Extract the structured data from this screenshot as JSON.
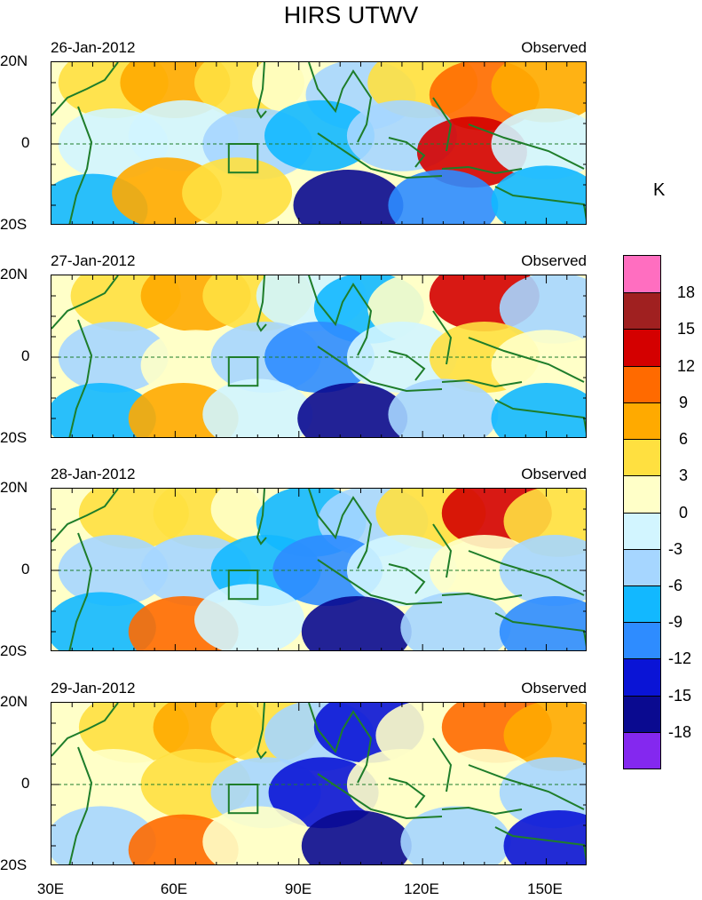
{
  "title": "HIRS UTWV",
  "unit": "K",
  "colorbar": {
    "levels": [
      "18",
      "15",
      "12",
      "9",
      "6",
      "3",
      "0",
      "-3",
      "-6",
      "-9",
      "-12",
      "-15",
      "-18"
    ],
    "colors": [
      "#ff6ec0",
      "#a02020",
      "#d40000",
      "#ff6a00",
      "#ffaa00",
      "#ffe040",
      "#ffffc8",
      "#d2f5ff",
      "#a6d6ff",
      "#12b8ff",
      "#2e8cff",
      "#0a14d6",
      "#0a0a90",
      "#8428ef"
    ]
  },
  "chart_data": {
    "type": "heatmap",
    "title": "HIRS UTWV",
    "colorbar_label": "K",
    "x_axis": {
      "ticks": [
        "30E",
        "60E",
        "90E",
        "120E",
        "150E"
      ],
      "range": [
        30,
        160
      ]
    },
    "y_axis": {
      "ticks": [
        "20N",
        "0",
        "20S"
      ],
      "range": [
        -20,
        20
      ]
    },
    "panels": [
      {
        "date": "26-Jan-2012",
        "label": "Observed",
        "y_ticks": [
          "20N",
          "0",
          "20S"
        ],
        "regions": [
          {
            "lon": 35,
            "lat": 12,
            "value": 0
          },
          {
            "lon": 45,
            "lat": 15,
            "value": 4
          },
          {
            "lon": 60,
            "lat": 15,
            "value": 6
          },
          {
            "lon": 78,
            "lat": 15,
            "value": 5
          },
          {
            "lon": 92,
            "lat": 15,
            "value": 2
          },
          {
            "lon": 105,
            "lat": 12,
            "value": -6
          },
          {
            "lon": 120,
            "lat": 15,
            "value": 3
          },
          {
            "lon": 135,
            "lat": 12,
            "value": 11
          },
          {
            "lon": 150,
            "lat": 14,
            "value": 8
          },
          {
            "lon": 45,
            "lat": 0,
            "value": -3
          },
          {
            "lon": 62,
            "lat": 2,
            "value": -1
          },
          {
            "lon": 80,
            "lat": 0,
            "value": -5
          },
          {
            "lon": 95,
            "lat": 2,
            "value": -8
          },
          {
            "lon": 115,
            "lat": 2,
            "value": -4
          },
          {
            "lon": 132,
            "lat": -2,
            "value": 13
          },
          {
            "lon": 150,
            "lat": 0,
            "value": -2
          },
          {
            "lon": 40,
            "lat": -16,
            "value": -9
          },
          {
            "lon": 58,
            "lat": -12,
            "value": 7
          },
          {
            "lon": 75,
            "lat": -12,
            "value": 5
          },
          {
            "lon": 102,
            "lat": -15,
            "value": -17
          },
          {
            "lon": 125,
            "lat": -15,
            "value": -10
          },
          {
            "lon": 150,
            "lat": -14,
            "value": -7
          }
        ]
      },
      {
        "date": "27-Jan-2012",
        "label": "Observed",
        "y_ticks": [
          "20N",
          "0",
          "20S"
        ],
        "regions": [
          {
            "lon": 35,
            "lat": 12,
            "value": 2
          },
          {
            "lon": 48,
            "lat": 15,
            "value": 5
          },
          {
            "lon": 65,
            "lat": 15,
            "value": 7
          },
          {
            "lon": 80,
            "lat": 15,
            "value": 4
          },
          {
            "lon": 93,
            "lat": 15,
            "value": -2
          },
          {
            "lon": 107,
            "lat": 12,
            "value": -8
          },
          {
            "lon": 120,
            "lat": 12,
            "value": 0
          },
          {
            "lon": 135,
            "lat": 15,
            "value": 13
          },
          {
            "lon": 152,
            "lat": 12,
            "value": -4
          },
          {
            "lon": 45,
            "lat": 0,
            "value": -5
          },
          {
            "lon": 65,
            "lat": -2,
            "value": 0
          },
          {
            "lon": 82,
            "lat": 0,
            "value": -6
          },
          {
            "lon": 95,
            "lat": 0,
            "value": -11
          },
          {
            "lon": 115,
            "lat": 0,
            "value": -3
          },
          {
            "lon": 135,
            "lat": 0,
            "value": 4
          },
          {
            "lon": 150,
            "lat": -2,
            "value": 1
          },
          {
            "lon": 42,
            "lat": -15,
            "value": -7
          },
          {
            "lon": 62,
            "lat": -15,
            "value": 8
          },
          {
            "lon": 80,
            "lat": -14,
            "value": -1
          },
          {
            "lon": 103,
            "lat": -15,
            "value": -17
          },
          {
            "lon": 125,
            "lat": -14,
            "value": -5
          },
          {
            "lon": 150,
            "lat": -15,
            "value": -7
          }
        ]
      },
      {
        "date": "28-Jan-2012",
        "label": "Observed",
        "y_ticks": [
          "20N",
          "0",
          "20S"
        ],
        "regions": [
          {
            "lon": 35,
            "lat": 12,
            "value": 2
          },
          {
            "lon": 50,
            "lat": 14,
            "value": 5
          },
          {
            "lon": 68,
            "lat": 14,
            "value": 4
          },
          {
            "lon": 82,
            "lat": 15,
            "value": 1
          },
          {
            "lon": 93,
            "lat": 12,
            "value": -7
          },
          {
            "lon": 108,
            "lat": 12,
            "value": -5
          },
          {
            "lon": 122,
            "lat": 14,
            "value": 5
          },
          {
            "lon": 138,
            "lat": 14,
            "value": 13
          },
          {
            "lon": 153,
            "lat": 12,
            "value": 4
          },
          {
            "lon": 45,
            "lat": 0,
            "value": -6
          },
          {
            "lon": 65,
            "lat": 0,
            "value": -4
          },
          {
            "lon": 82,
            "lat": 0,
            "value": -8
          },
          {
            "lon": 97,
            "lat": 0,
            "value": -12
          },
          {
            "lon": 115,
            "lat": 0,
            "value": -2
          },
          {
            "lon": 135,
            "lat": 0,
            "value": 2
          },
          {
            "lon": 152,
            "lat": 0,
            "value": -4
          },
          {
            "lon": 42,
            "lat": -14,
            "value": -7
          },
          {
            "lon": 62,
            "lat": -15,
            "value": 11
          },
          {
            "lon": 78,
            "lat": -12,
            "value": -2
          },
          {
            "lon": 104,
            "lat": -15,
            "value": -16
          },
          {
            "lon": 128,
            "lat": -14,
            "value": -6
          },
          {
            "lon": 152,
            "lat": -15,
            "value": -11
          }
        ]
      },
      {
        "date": "29-Jan-2012",
        "label": "Observed",
        "y_ticks": [
          "20N",
          "0",
          "20S"
        ],
        "regions": [
          {
            "lon": 35,
            "lat": 12,
            "value": 2
          },
          {
            "lon": 50,
            "lat": 14,
            "value": 5
          },
          {
            "lon": 68,
            "lat": 14,
            "value": 7
          },
          {
            "lon": 82,
            "lat": 14,
            "value": 3
          },
          {
            "lon": 95,
            "lat": 12,
            "value": -6
          },
          {
            "lon": 107,
            "lat": 14,
            "value": -13
          },
          {
            "lon": 122,
            "lat": 12,
            "value": 2
          },
          {
            "lon": 138,
            "lat": 14,
            "value": 10
          },
          {
            "lon": 153,
            "lat": 12,
            "value": 6
          },
          {
            "lon": 45,
            "lat": 0,
            "value": 0
          },
          {
            "lon": 65,
            "lat": 0,
            "value": 3
          },
          {
            "lon": 82,
            "lat": -2,
            "value": -5
          },
          {
            "lon": 96,
            "lat": -2,
            "value": -13
          },
          {
            "lon": 115,
            "lat": 0,
            "value": 2
          },
          {
            "lon": 135,
            "lat": 0,
            "value": 1
          },
          {
            "lon": 152,
            "lat": -2,
            "value": -5
          },
          {
            "lon": 42,
            "lat": -14,
            "value": -6
          },
          {
            "lon": 62,
            "lat": -16,
            "value": 9
          },
          {
            "lon": 80,
            "lat": -14,
            "value": 2
          },
          {
            "lon": 104,
            "lat": -15,
            "value": -16
          },
          {
            "lon": 128,
            "lat": -14,
            "value": -4
          },
          {
            "lon": 153,
            "lat": -15,
            "value": -14
          }
        ]
      }
    ]
  }
}
